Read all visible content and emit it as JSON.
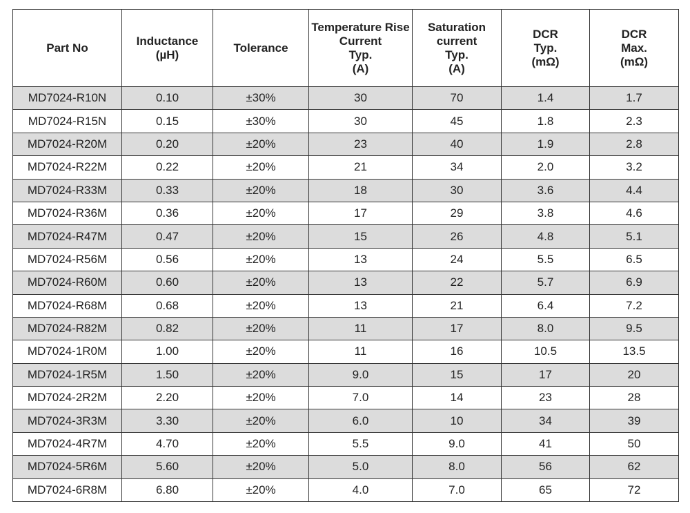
{
  "table": {
    "headers": [
      "Part No",
      "Inductance\n(µH)",
      "Tolerance",
      "Temperature Rise\nCurrent\nTyp.\n(A)",
      "Saturation\ncurrent\nTyp.\n(A)",
      "DCR\nTyp.\n(mΩ)",
      "DCR\nMax.\n(mΩ)"
    ],
    "rows": [
      [
        "MD7024-R10N",
        "0.10",
        "±30%",
        "30",
        "70",
        "1.4",
        "1.7"
      ],
      [
        "MD7024-R15N",
        "0.15",
        "±30%",
        "30",
        "45",
        "1.8",
        "2.3"
      ],
      [
        "MD7024-R20M",
        "0.20",
        "±20%",
        "23",
        "40",
        "1.9",
        "2.8"
      ],
      [
        "MD7024-R22M",
        "0.22",
        "±20%",
        "21",
        "34",
        "2.0",
        "3.2"
      ],
      [
        "MD7024-R33M",
        "0.33",
        "±20%",
        "18",
        "30",
        "3.6",
        "4.4"
      ],
      [
        "MD7024-R36M",
        "0.36",
        "±20%",
        "17",
        "29",
        "3.8",
        "4.6"
      ],
      [
        "MD7024-R47M",
        "0.47",
        "±20%",
        "15",
        "26",
        "4.8",
        "5.1"
      ],
      [
        "MD7024-R56M",
        "0.56",
        "±20%",
        "13",
        "24",
        "5.5",
        "6.5"
      ],
      [
        "MD7024-R60M",
        "0.60",
        "±20%",
        "13",
        "22",
        "5.7",
        "6.9"
      ],
      [
        "MD7024-R68M",
        "0.68",
        "±20%",
        "13",
        "21",
        "6.4",
        "7.2"
      ],
      [
        "MD7024-R82M",
        "0.82",
        "±20%",
        "11",
        "17",
        "8.0",
        "9.5"
      ],
      [
        "MD7024-1R0M",
        "1.00",
        "±20%",
        "11",
        "16",
        "10.5",
        "13.5"
      ],
      [
        "MD7024-1R5M",
        "1.50",
        "±20%",
        "9.0",
        "15",
        "17",
        "20"
      ],
      [
        "MD7024-2R2M",
        "2.20",
        "±20%",
        "7.0",
        "14",
        "23",
        "28"
      ],
      [
        "MD7024-3R3M",
        "3.30",
        "±20%",
        "6.0",
        "10",
        "34",
        "39"
      ],
      [
        "MD7024-4R7M",
        "4.70",
        "±20%",
        "5.5",
        "9.0",
        "41",
        "50"
      ],
      [
        "MD7024-5R6M",
        "5.60",
        "±20%",
        "5.0",
        "8.0",
        "56",
        "62"
      ],
      [
        "MD7024-6R8M",
        "6.80",
        "±20%",
        "4.0",
        "7.0",
        "65",
        "72"
      ]
    ]
  },
  "colors": {
    "shaded_row": "#dcdcdc",
    "border": "#333333"
  }
}
